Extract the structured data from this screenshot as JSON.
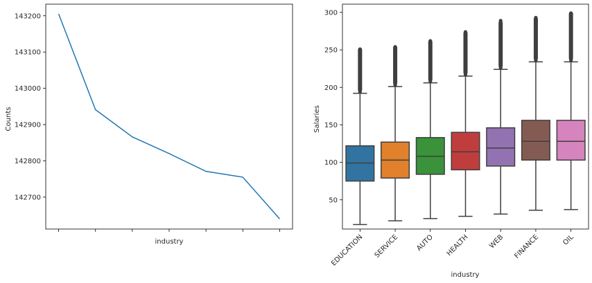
{
  "chart_data": [
    {
      "type": "line",
      "title": "",
      "xlabel": "industry",
      "ylabel": "Counts",
      "x": [
        0,
        1,
        2,
        3,
        4,
        5,
        6
      ],
      "xticklabels": [
        "",
        "",
        "",
        "",
        "",
        "",
        ""
      ],
      "series": [
        {
          "name": "",
          "color": "#1f77b4",
          "values": [
            143205,
            142941,
            142866,
            142820,
            142771,
            142755,
            142640
          ]
        }
      ],
      "ylim": [
        142612,
        143232
      ],
      "yticks": [
        142700,
        142800,
        142900,
        143000,
        143100,
        143200
      ],
      "grid": false
    },
    {
      "type": "box",
      "title": "",
      "xlabel": "industry",
      "ylabel": "Salaries",
      "ylim": [
        11,
        311
      ],
      "yticks": [
        50,
        100,
        150,
        200,
        250,
        300
      ],
      "categories": [
        "EDUCATION",
        "SERVICE",
        "AUTO",
        "HEALTH",
        "WEB",
        "FINANCE",
        "OIL"
      ],
      "boxes": [
        {
          "category": "EDUCATION",
          "color": "#3274a1",
          "min": 17,
          "q1": 75,
          "median": 99,
          "q3": 122,
          "max": 192,
          "outliers_max": 253
        },
        {
          "category": "SERVICE",
          "color": "#e1812c",
          "min": 22,
          "q1": 79,
          "median": 103,
          "q3": 127,
          "max": 201,
          "outliers_max": 256
        },
        {
          "category": "AUTO",
          "color": "#3a923a",
          "min": 25,
          "q1": 84,
          "median": 108,
          "q3": 133,
          "max": 206,
          "outliers_max": 263
        },
        {
          "category": "HEALTH",
          "color": "#c03d3e",
          "min": 28,
          "q1": 90,
          "median": 114,
          "q3": 140,
          "max": 215,
          "outliers_max": 275
        },
        {
          "category": "WEB",
          "color": "#9372b2",
          "min": 31,
          "q1": 95,
          "median": 119,
          "q3": 146,
          "max": 224,
          "outliers_max": 289
        },
        {
          "category": "FINANCE",
          "color": "#845b53",
          "min": 36,
          "q1": 103,
          "median": 128,
          "q3": 156,
          "max": 234,
          "outliers_max": 294
        },
        {
          "category": "OIL",
          "color": "#d684bd",
          "min": 37,
          "q1": 103,
          "median": 128,
          "q3": 156,
          "max": 234,
          "outliers_max": 301
        }
      ],
      "grid": false
    }
  ]
}
